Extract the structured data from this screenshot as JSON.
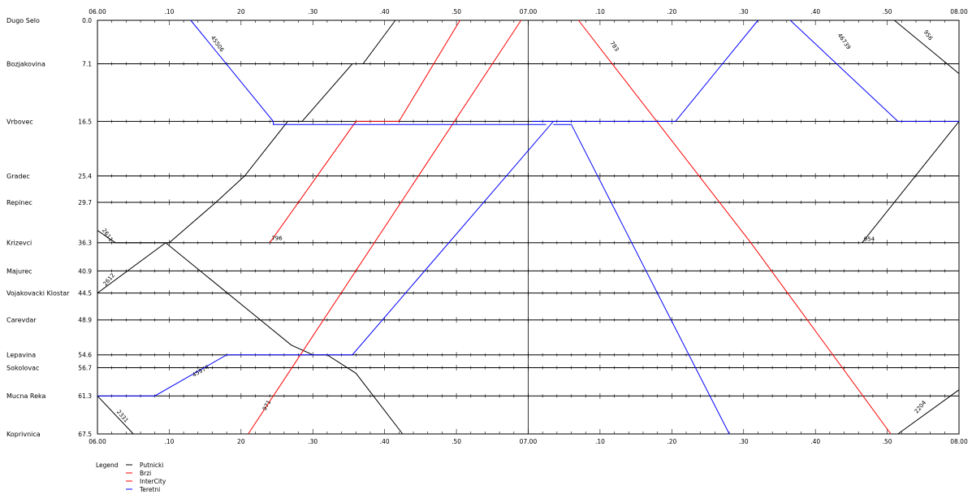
{
  "chart_data": {
    "type": "line",
    "title": "",
    "xlabel": "",
    "ylabel": "",
    "x_axis": {
      "min_minutes": 360,
      "max_minutes": 480,
      "tick_labels": [
        {
          "label": "06.00",
          "minute": 360
        },
        {
          "label": ".10",
          "minute": 370
        },
        {
          "label": "20",
          "minute": 380
        },
        {
          "label": ".30",
          "minute": 390
        },
        {
          "label": ".40",
          "minute": 400
        },
        {
          "label": ".50",
          "minute": 410
        },
        {
          "label": "07.00",
          "minute": 420
        },
        {
          "label": ".10",
          "minute": 430
        },
        {
          "label": ".20",
          "minute": 440
        },
        {
          "label": ".30",
          "minute": 450
        },
        {
          "label": ".40",
          "minute": 460
        },
        {
          "label": ".50",
          "minute": 470
        },
        {
          "label": "08.00",
          "minute": 480
        }
      ]
    },
    "ylim": [
      0,
      67.5
    ],
    "stations": [
      {
        "name": "Dugo Selo",
        "km": 0.0,
        "km_label": "0.0"
      },
      {
        "name": "Bozjakovina",
        "km": 7.1,
        "km_label": "7.1"
      },
      {
        "name": "Vrbovec",
        "km": 16.5,
        "km_label": "16.5"
      },
      {
        "name": "Gradec",
        "km": 25.4,
        "km_label": "25.4"
      },
      {
        "name": "Repinec",
        "km": 29.7,
        "km_label": "29.7"
      },
      {
        "name": "Krizevci",
        "km": 36.3,
        "km_label": "36.3"
      },
      {
        "name": "Majurec",
        "km": 40.9,
        "km_label": "40.9"
      },
      {
        "name": "Vojakovacki Klostar",
        "km": 44.5,
        "km_label": "44.5"
      },
      {
        "name": "Carevdar",
        "km": 48.9,
        "km_label": "48.9"
      },
      {
        "name": "Lepavina",
        "km": 54.6,
        "km_label": "54.6"
      },
      {
        "name": "Sokolovac",
        "km": 56.7,
        "km_label": "56.7"
      },
      {
        "name": "Mucna Reka",
        "km": 61.3,
        "km_label": "61.3"
      },
      {
        "name": "Koprivnica",
        "km": 67.5,
        "km_label": "67.5"
      }
    ],
    "legend": {
      "title": "Legend",
      "position": "bottom-left",
      "items": [
        {
          "label": "Putnicki",
          "color": "#000000"
        },
        {
          "label": "Brzi",
          "color": "#ff0000"
        },
        {
          "label": "InterCity",
          "color": "#ff0000"
        },
        {
          "label": "Teretni",
          "color": "#0000ff"
        }
      ]
    },
    "series": [
      {
        "name": "2611",
        "type": "Putnicki",
        "color": "#000000",
        "points": [
          [
            360,
            34.3
          ],
          [
            362.5,
            36.3
          ],
          [
            369,
            36.3
          ],
          [
            370,
            36.3
          ],
          [
            376.5,
            29.7
          ],
          [
            380.5,
            25.4
          ],
          [
            386.5,
            16.5
          ],
          [
            388.5,
            16.5
          ],
          [
            395.5,
            7.1
          ],
          [
            397,
            7.1
          ],
          [
            401.5,
            0
          ]
        ]
      },
      {
        "name": "2612",
        "type": "Putnicki",
        "color": "#000000",
        "points": [
          [
            360,
            44.5
          ],
          [
            369.5,
            36.3
          ],
          [
            387,
            53.0
          ],
          [
            390,
            54.6
          ],
          [
            392,
            54.6
          ],
          [
            396,
            57.6
          ],
          [
            402.5,
            67.5
          ]
        ]
      },
      {
        "name": "2331",
        "type": "Putnicki",
        "color": "#000000",
        "points": [
          [
            360,
            61.3
          ],
          [
            365,
            67.5
          ]
        ]
      },
      {
        "name": "956",
        "type": "Putnicki",
        "color": "#000000",
        "points": [
          [
            471,
            0
          ],
          [
            480,
            8.7
          ]
        ]
      },
      {
        "name": "954",
        "type": "Putnicki",
        "color": "#000000",
        "points": [
          [
            466.5,
            36.3
          ],
          [
            480,
            16.5
          ]
        ]
      },
      {
        "name": "2204",
        "type": "Putnicki",
        "color": "#000000",
        "points": [
          [
            471.5,
            67.5
          ],
          [
            480,
            60.3
          ]
        ]
      },
      {
        "name": "796",
        "type": "Brzi",
        "color": "#ff0000",
        "points": [
          [
            384,
            36.3
          ],
          [
            396,
            16.5
          ],
          [
            402,
            16.5
          ],
          [
            410.5,
            0
          ]
        ]
      },
      {
        "name": "971",
        "type": "InterCity",
        "color": "#ff0000",
        "points": [
          [
            381,
            67.5
          ],
          [
            419,
            0
          ]
        ]
      },
      {
        "name": "783",
        "type": "InterCity",
        "color": "#ff0000",
        "points": [
          [
            427,
            0
          ],
          [
            451,
            36.3
          ],
          [
            470.5,
            67.5
          ]
        ]
      },
      {
        "name": "45506",
        "type": "Teretni",
        "color": "#0000ff",
        "points": [
          [
            373,
            0
          ],
          [
            384.5,
            16.5
          ],
          [
            384.5,
            17.0
          ],
          [
            422.5,
            17.0
          ]
        ]
      },
      {
        "name": "45974",
        "type": "Teretni",
        "color": "#0000ff",
        "points": [
          [
            360,
            61.3
          ],
          [
            368,
            61.3
          ],
          [
            378,
            54.6
          ],
          [
            395.5,
            54.6
          ],
          [
            423.5,
            16.5
          ],
          [
            420.5,
            16.5
          ],
          [
            440.5,
            16.5
          ],
          [
            452,
            0
          ]
        ]
      },
      {
        "name": "46739",
        "type": "Teretni",
        "color": "#0000ff",
        "points": [
          [
            456.5,
            0
          ],
          [
            471.5,
            16.5
          ],
          [
            480,
            16.5
          ]
        ]
      },
      {
        "name": "",
        "type": "Teretni",
        "color": "#0000ff",
        "points": [
          [
            423.5,
            17.0
          ],
          [
            426,
            17.0
          ],
          [
            448,
            67.5
          ]
        ]
      }
    ],
    "train_labels": [
      {
        "text": "45506",
        "minute": 376.5,
        "km": 4.0,
        "angle": 55
      },
      {
        "text": "2611",
        "minute": 361.2,
        "km": 35.2,
        "angle": 55
      },
      {
        "text": "2612",
        "minute": 361.8,
        "km": 42.5,
        "angle": -50
      },
      {
        "text": "796",
        "minute": 385,
        "km": 35.9,
        "angle": 0
      },
      {
        "text": "45974",
        "minute": 374.5,
        "km": 57.5,
        "angle": -30
      },
      {
        "text": "2331",
        "minute": 363.3,
        "km": 64.8,
        "angle": 50
      },
      {
        "text": "971",
        "minute": 383.8,
        "km": 63.0,
        "angle": -60
      },
      {
        "text": "783",
        "minute": 431.8,
        "km": 4.4,
        "angle": 55
      },
      {
        "text": "46739",
        "minute": 463.8,
        "km": 3.6,
        "angle": 55
      },
      {
        "text": "956",
        "minute": 475.5,
        "km": 2.6,
        "angle": 55
      },
      {
        "text": "954",
        "minute": 467.5,
        "km": 36.0,
        "angle": 0
      },
      {
        "text": "2204",
        "minute": 474.8,
        "km": 63.3,
        "angle": -50
      }
    ]
  }
}
